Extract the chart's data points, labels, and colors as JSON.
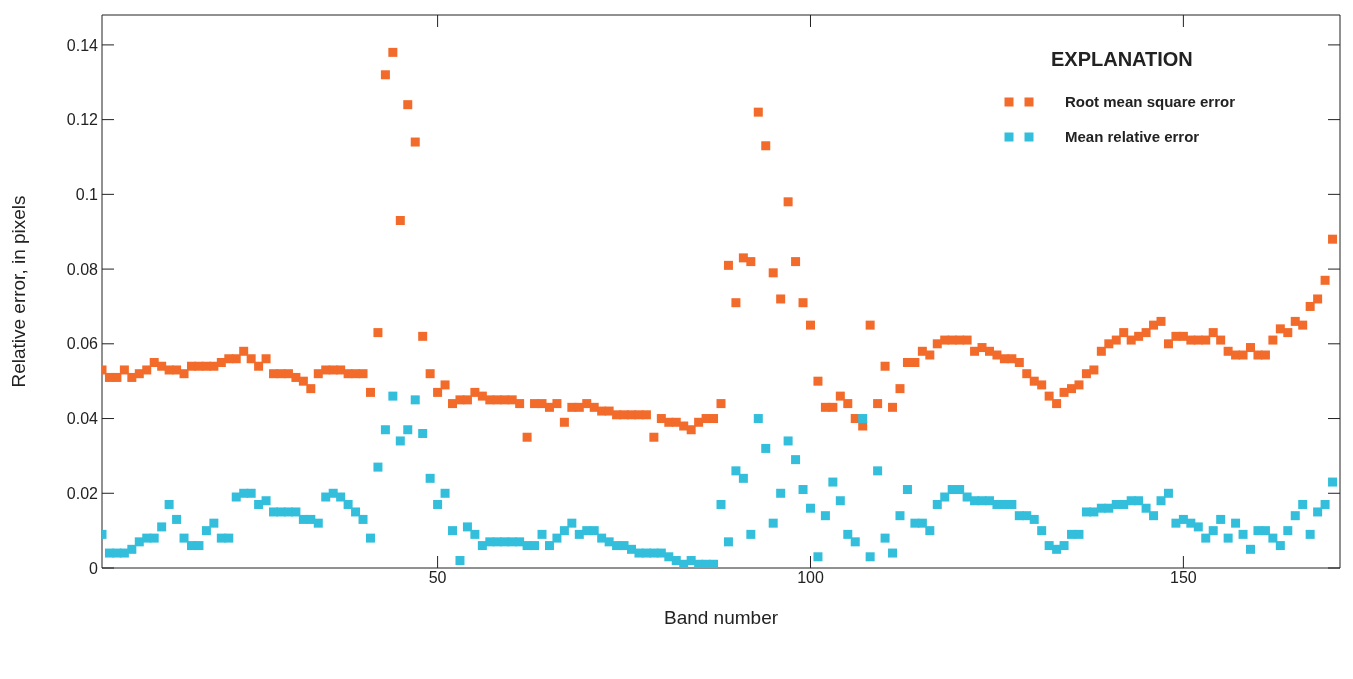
{
  "chart_data": {
    "type": "scatter",
    "xlabel": "Band number",
    "ylabel": "Relative error, in pixels",
    "legend_title": "EXPLANATION",
    "legend": "top right",
    "marker": "square",
    "xlim": [
      5,
      171
    ],
    "xticks": [
      50,
      100,
      150
    ],
    "ylim": [
      0,
      0.148
    ],
    "yticks": [
      0,
      0.02,
      0.04,
      0.06,
      0.08,
      0.1,
      0.12,
      0.14
    ],
    "x": [
      5,
      6,
      7,
      8,
      9,
      10,
      11,
      12,
      13,
      14,
      15,
      16,
      17,
      18,
      19,
      20,
      21,
      22,
      23,
      24,
      25,
      26,
      27,
      28,
      29,
      30,
      31,
      32,
      33,
      34,
      35,
      36,
      37,
      38,
      39,
      40,
      41,
      42,
      43,
      44,
      45,
      46,
      47,
      48,
      49,
      50,
      51,
      52,
      53,
      54,
      55,
      56,
      57,
      58,
      59,
      60,
      61,
      62,
      63,
      64,
      65,
      66,
      67,
      68,
      69,
      70,
      71,
      72,
      73,
      74,
      75,
      76,
      77,
      78,
      79,
      80,
      81,
      82,
      83,
      84,
      85,
      86,
      87,
      88,
      89,
      90,
      91,
      92,
      93,
      94,
      95,
      96,
      97,
      98,
      99,
      100,
      101,
      102,
      103,
      104,
      105,
      106,
      107,
      108,
      109,
      110,
      111,
      112,
      113,
      114,
      115,
      116,
      117,
      118,
      119,
      120,
      121,
      122,
      123,
      124,
      125,
      126,
      127,
      128,
      129,
      130,
      131,
      132,
      133,
      134,
      135,
      136,
      137,
      138,
      139,
      140,
      141,
      142,
      143,
      144,
      145,
      146,
      147,
      148,
      149,
      150,
      151,
      152,
      153,
      154,
      155,
      156,
      157,
      158,
      159,
      160,
      161,
      162,
      163,
      164,
      165,
      166,
      167,
      168,
      169,
      170
    ],
    "series": [
      {
        "name": "Root mean square error",
        "color": "#f26b2a",
        "values": [
          0.053,
          0.051,
          0.051,
          0.053,
          0.051,
          0.052,
          0.053,
          0.055,
          0.054,
          0.053,
          0.053,
          0.052,
          0.054,
          0.054,
          0.054,
          0.054,
          0.055,
          0.056,
          0.056,
          0.058,
          0.056,
          0.054,
          0.056,
          0.052,
          0.052,
          0.052,
          0.051,
          0.05,
          0.048,
          0.052,
          0.053,
          0.053,
          0.053,
          0.052,
          0.052,
          0.052,
          0.047,
          0.063,
          0.132,
          0.138,
          0.093,
          0.124,
          0.114,
          0.062,
          0.052,
          0.047,
          0.049,
          0.044,
          0.045,
          0.045,
          0.047,
          0.046,
          0.045,
          0.045,
          0.045,
          0.045,
          0.044,
          0.035,
          0.044,
          0.044,
          0.043,
          0.044,
          0.039,
          0.043,
          0.043,
          0.044,
          0.043,
          0.042,
          0.042,
          0.041,
          0.041,
          0.041,
          0.041,
          0.041,
          0.035,
          0.04,
          0.039,
          0.039,
          0.038,
          0.037,
          0.039,
          0.04,
          0.04,
          0.044,
          0.081,
          0.071,
          0.083,
          0.082,
          0.122,
          0.113,
          0.079,
          0.072,
          0.098,
          0.082,
          0.071,
          0.065,
          0.05,
          0.043,
          0.043,
          0.046,
          0.044,
          0.04,
          0.038,
          0.065,
          0.044,
          0.054,
          0.043,
          0.048,
          0.055,
          0.055,
          0.058,
          0.057,
          0.06,
          0.061,
          0.061,
          0.061,
          0.061,
          0.058,
          0.059,
          0.058,
          0.057,
          0.056,
          0.056,
          0.055,
          0.052,
          0.05,
          0.049,
          0.046,
          0.044,
          0.047,
          0.048,
          0.049,
          0.052,
          0.053,
          0.058,
          0.06,
          0.061,
          0.063,
          0.061,
          0.062,
          0.063,
          0.065,
          0.066,
          0.06,
          0.062,
          0.062,
          0.061,
          0.061,
          0.061,
          0.063,
          0.061,
          0.058,
          0.057,
          0.057,
          0.059,
          0.057,
          0.057,
          0.061,
          0.064,
          0.063,
          0.066,
          0.065,
          0.07,
          0.072,
          0.077,
          0.088
        ]
      },
      {
        "name": "Mean relative error",
        "color": "#33bfdb",
        "values": [
          0.009,
          0.004,
          0.004,
          0.004,
          0.005,
          0.007,
          0.008,
          0.008,
          0.011,
          0.017,
          0.013,
          0.008,
          0.006,
          0.006,
          0.01,
          0.012,
          0.008,
          0.008,
          0.019,
          0.02,
          0.02,
          0.017,
          0.018,
          0.015,
          0.015,
          0.015,
          0.015,
          0.013,
          0.013,
          0.012,
          0.019,
          0.02,
          0.019,
          0.017,
          0.015,
          0.013,
          0.008,
          0.027,
          0.037,
          0.046,
          0.034,
          0.037,
          0.045,
          0.036,
          0.024,
          0.017,
          0.02,
          0.01,
          0.002,
          0.011,
          0.009,
          0.006,
          0.007,
          0.007,
          0.007,
          0.007,
          0.007,
          0.006,
          0.006,
          0.009,
          0.006,
          0.008,
          0.01,
          0.012,
          0.009,
          0.01,
          0.01,
          0.008,
          0.007,
          0.006,
          0.006,
          0.005,
          0.004,
          0.004,
          0.004,
          0.004,
          0.003,
          0.002,
          0.001,
          0.002,
          0.001,
          0.001,
          0.001,
          0.017,
          0.007,
          0.026,
          0.024,
          0.009,
          0.04,
          0.032,
          0.012,
          0.02,
          0.034,
          0.029,
          0.021,
          0.016,
          0.003,
          0.014,
          0.023,
          0.018,
          0.009,
          0.007,
          0.04,
          0.003,
          0.026,
          0.008,
          0.004,
          0.014,
          0.021,
          0.012,
          0.012,
          0.01,
          0.017,
          0.019,
          0.021,
          0.021,
          0.019,
          0.018,
          0.018,
          0.018,
          0.017,
          0.017,
          0.017,
          0.014,
          0.014,
          0.013,
          0.01,
          0.006,
          0.005,
          0.006,
          0.009,
          0.009,
          0.015,
          0.015,
          0.016,
          0.016,
          0.017,
          0.017,
          0.018,
          0.018,
          0.016,
          0.014,
          0.018,
          0.02,
          0.012,
          0.013,
          0.012,
          0.011,
          0.008,
          0.01,
          0.013,
          0.008,
          0.012,
          0.009,
          0.005,
          0.01,
          0.01,
          0.008,
          0.006,
          0.01,
          0.014,
          0.017,
          0.009,
          0.015,
          0.017,
          0.023
        ]
      }
    ]
  }
}
